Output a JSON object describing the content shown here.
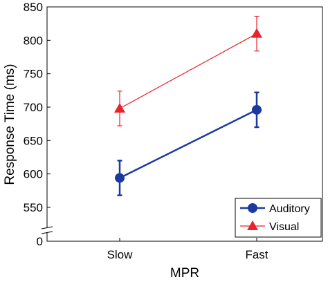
{
  "chart_data": {
    "type": "line",
    "xlabel": "MPR",
    "ylabel": "Response Time (ms)",
    "categories": [
      "Slow",
      "Fast"
    ],
    "ylim": [
      500,
      850
    ],
    "yticks": [
      "0",
      "550",
      "600",
      "650",
      "700",
      "750",
      "800",
      "850"
    ],
    "axis_break": true,
    "grid": false,
    "legend_position": "bottom-right",
    "series": [
      {
        "name": "Auditory",
        "values": [
          594,
          696
        ],
        "error": [
          26,
          26
        ],
        "color": "#1a3aa0",
        "marker": "circle"
      },
      {
        "name": "Visual",
        "values": [
          698,
          810
        ],
        "error": [
          26,
          26
        ],
        "color": "#e8232b",
        "marker": "triangle"
      }
    ]
  }
}
